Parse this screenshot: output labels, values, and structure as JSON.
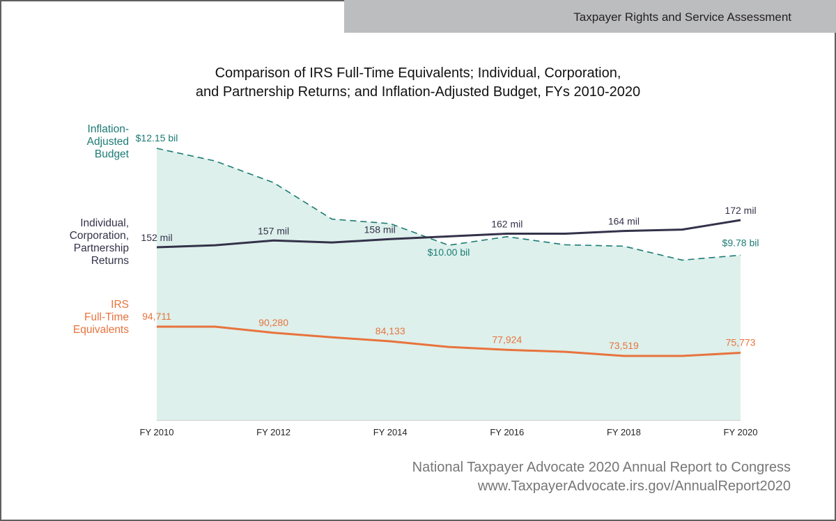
{
  "header": {
    "section_title": "Taxpayer Rights and Service Assessment"
  },
  "footer": {
    "line1": "National Taxpayer Advocate 2020 Annual Report to Congress",
    "line2": "www.TaxpayerAdvocate.irs.gov/AnnualReport2020"
  },
  "colors": {
    "budget": "#1b7a74",
    "budget_fill": "#ddf0eb",
    "returns": "#33324a",
    "fte": "#e8733d",
    "header_band": "#bcbdbf"
  },
  "chart_data": {
    "type": "line",
    "title_line1": "Comparison of IRS Full-Time Equivalents; Individual, Corporation,",
    "title_line2": "and Partnership Returns; and Inflation-Adjusted Budget, FYs 2010-2020",
    "x": [
      "FY 2010",
      "FY 2011",
      "FY 2012",
      "FY 2013",
      "FY 2014",
      "FY 2015",
      "FY 2016",
      "FY 2017",
      "FY 2018",
      "FY 2019",
      "FY 2020"
    ],
    "x_tick_labels": [
      "FY 2010",
      "FY 2012",
      "FY 2014",
      "FY 2016",
      "FY 2018",
      "FY 2020"
    ],
    "grid": false,
    "series": [
      {
        "name": "Inflation-Adjusted Budget",
        "label": "Inflation-\nAdjusted\nBudget",
        "unit": "billion USD",
        "style": "dashed-area",
        "values": [
          12.15,
          11.87,
          11.39,
          10.58,
          10.48,
          10.0,
          10.19,
          10.01,
          9.98,
          9.67,
          9.78
        ],
        "data_labels": [
          {
            "index": 0,
            "text": "$12.15 bil"
          },
          {
            "index": 5,
            "text": "$10.00 bil"
          },
          {
            "index": 10,
            "text": "$9.78 bil"
          }
        ]
      },
      {
        "name": "Individual, Corporation, Partnership Returns",
        "label": "Individual,\nCorporation,\nPartnership\nReturns",
        "unit": "million returns",
        "style": "solid",
        "values": [
          152,
          153.5,
          157,
          155.5,
          158,
          160,
          162,
          162,
          164,
          165,
          172
        ],
        "data_labels": [
          {
            "index": 0,
            "text": "152 mil"
          },
          {
            "index": 2,
            "text": "157 mil"
          },
          {
            "index": 4,
            "text": "158 mil"
          },
          {
            "index": 6,
            "text": "162 mil"
          },
          {
            "index": 8,
            "text": "164 mil"
          },
          {
            "index": 10,
            "text": "172 mil"
          }
        ]
      },
      {
        "name": "IRS Full-Time Equivalents",
        "label": "IRS\nFull-Time\nEquivalents",
        "unit": "FTEs",
        "style": "solid",
        "values": [
          94711,
          94711,
          90280,
          87000,
          84133,
          80000,
          77924,
          76500,
          73519,
          73500,
          75773
        ],
        "data_labels": [
          {
            "index": 0,
            "text": "94,711"
          },
          {
            "index": 2,
            "text": "90,280"
          },
          {
            "index": 4,
            "text": "84,133"
          },
          {
            "index": 6,
            "text": "77,924"
          },
          {
            "index": 8,
            "text": "73,519"
          },
          {
            "index": 10,
            "text": "75,773"
          }
        ]
      }
    ]
  }
}
